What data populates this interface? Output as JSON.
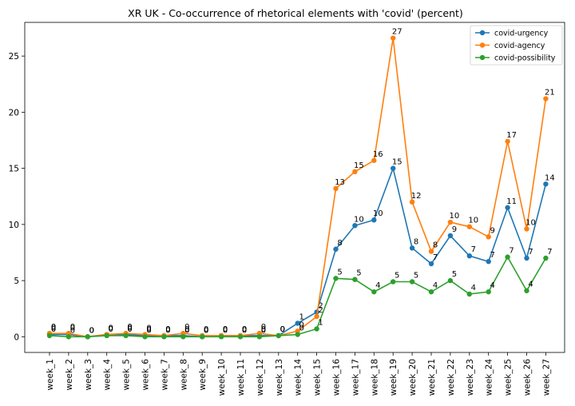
{
  "chart_data": {
    "type": "line",
    "title": "XR UK - Co-occurrence of rhetorical elements with 'covid' (percent)",
    "xlabel": "",
    "ylabel": "",
    "categories": [
      "week_1",
      "week_2",
      "week_3",
      "week_4",
      "week_5",
      "week_6",
      "week_7",
      "week_8",
      "week_9",
      "week_10",
      "week_11",
      "week_12",
      "week_13",
      "week_14",
      "week_15",
      "week_16",
      "week_17",
      "week_18",
      "week_19",
      "week_20",
      "week_21",
      "week_22",
      "week_23",
      "week_24",
      "week_25",
      "week_26",
      "week_27"
    ],
    "ylim": [
      -1.4,
      28
    ],
    "yticks": [
      0,
      5,
      10,
      15,
      20,
      25
    ],
    "grid": false,
    "legend_position": "top-right",
    "series": [
      {
        "name": "covid-urgency",
        "color": "#1f77b4",
        "values": [
          0.2,
          0.2,
          0.0,
          0.2,
          0.2,
          0.1,
          0.1,
          0.1,
          0.0,
          0.1,
          0.1,
          0.1,
          0.1,
          1.2,
          2.2,
          7.8,
          9.9,
          10.4,
          15.0,
          7.9,
          6.5,
          9.0,
          7.2,
          6.7,
          11.5,
          7.0,
          13.6
        ],
        "labels": [
          "0",
          "0",
          "0",
          "0",
          "0",
          "0",
          "0",
          "0",
          "0",
          "0",
          "0",
          "0",
          "0",
          "1",
          "2",
          "8",
          "10",
          "10",
          "15",
          "8",
          "7",
          "9",
          "7",
          "7",
          "11",
          "7",
          "14"
        ]
      },
      {
        "name": "covid-agency",
        "color": "#ff7f0e",
        "values": [
          0.3,
          0.3,
          0.0,
          0.2,
          0.3,
          0.2,
          0.1,
          0.3,
          0.1,
          0.1,
          0.1,
          0.3,
          0.1,
          0.5,
          1.8,
          13.2,
          14.7,
          15.7,
          26.6,
          12.0,
          7.6,
          10.2,
          9.8,
          8.9,
          17.4,
          9.6,
          21.2
        ],
        "labels": [
          "0",
          "0",
          "0",
          "0",
          "0",
          "0",
          "0",
          "0",
          "0",
          "0",
          "0",
          "0",
          "0",
          "0",
          "2",
          "13",
          "15",
          "16",
          "27",
          "12",
          "8",
          "10",
          "10",
          "9",
          "17",
          "10",
          "21"
        ]
      },
      {
        "name": "covid-possibility",
        "color": "#2ca02c",
        "values": [
          0.1,
          0.0,
          0.0,
          0.1,
          0.1,
          0.0,
          0.0,
          0.0,
          0.0,
          0.0,
          0.0,
          0.0,
          0.1,
          0.2,
          0.7,
          5.2,
          5.1,
          4.0,
          4.9,
          4.9,
          4.0,
          5.0,
          3.8,
          4.0,
          7.1,
          4.1,
          7.0
        ],
        "labels": [
          "0",
          "0",
          "0",
          "0",
          "0",
          "0",
          "0",
          "0",
          "0",
          "0",
          "0",
          "0",
          "0",
          "0",
          "1",
          "5",
          "5",
          "4",
          "5",
          "5",
          "4",
          "5",
          "4",
          "4",
          "7",
          "4",
          "7"
        ]
      }
    ]
  }
}
